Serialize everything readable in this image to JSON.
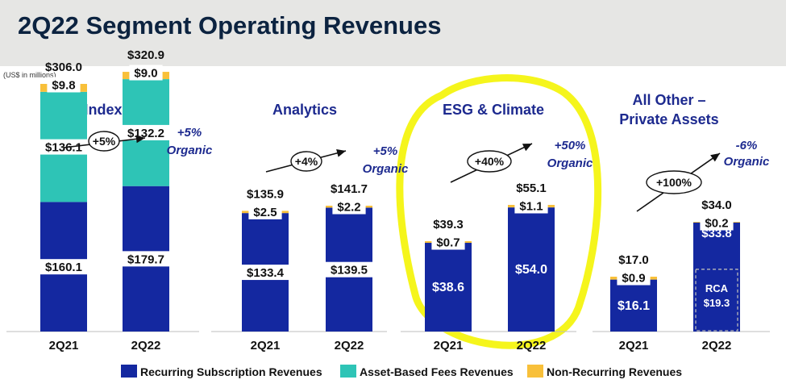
{
  "title": "2Q22 Segment Operating Revenues",
  "units": "(US$ in millions)",
  "colors": {
    "recurring": "#1428a0",
    "asset_based": "#2ec4b6",
    "non_recurring": "#f8c03a",
    "title": "#0c2340",
    "panel_title": "#1d2a8f",
    "highlight": "#f5f51c"
  },
  "chart_data": [
    {
      "type": "bar",
      "stacked": true,
      "title": "Index",
      "categories": [
        "2Q21",
        "2Q22"
      ],
      "totals": [
        "$306.0",
        "$320.9"
      ],
      "series": [
        {
          "name": "Recurring Subscription Revenues",
          "values": [
            160.1,
            179.7
          ],
          "labels": [
            "$160.1",
            "$179.7"
          ]
        },
        {
          "name": "Asset-Based Fees Revenues",
          "values": [
            136.1,
            132.2
          ],
          "labels": [
            "$136.1",
            "$132.2"
          ]
        },
        {
          "name": "Non-Recurring Revenues",
          "values": [
            9.8,
            9.0
          ],
          "labels": [
            "$9.8",
            "$9.0"
          ]
        }
      ],
      "growth": "+5%",
      "organic": [
        "+5%",
        "Organic"
      ]
    },
    {
      "type": "bar",
      "stacked": true,
      "title": "Analytics",
      "categories": [
        "2Q21",
        "2Q22"
      ],
      "totals": [
        "$135.9",
        "$141.7"
      ],
      "series": [
        {
          "name": "Recurring Subscription Revenues",
          "values": [
            133.4,
            139.5
          ],
          "labels": [
            "$133.4",
            "$139.5"
          ]
        },
        {
          "name": "Non-Recurring Revenues",
          "values": [
            2.5,
            2.2
          ],
          "labels": [
            "$2.5",
            "$2.2"
          ]
        }
      ],
      "growth": "+4%",
      "organic": [
        "+5%",
        "Organic"
      ]
    },
    {
      "type": "bar",
      "stacked": true,
      "title": "ESG & Climate",
      "categories": [
        "2Q21",
        "2Q22"
      ],
      "totals": [
        "$39.3",
        "$55.1"
      ],
      "series": [
        {
          "name": "Recurring Subscription Revenues",
          "values": [
            38.6,
            54.0
          ],
          "labels": [
            "$38.6",
            "$54.0"
          ]
        },
        {
          "name": "Non-Recurring Revenues",
          "values": [
            0.7,
            1.1
          ],
          "labels": [
            "$0.7",
            "$1.1"
          ]
        }
      ],
      "growth": "+40%",
      "organic": [
        "+50%",
        "Organic"
      ]
    },
    {
      "type": "bar",
      "stacked": true,
      "title": [
        "All Other –",
        "Private Assets"
      ],
      "categories": [
        "2Q21",
        "2Q22"
      ],
      "totals": [
        "$17.0",
        "$34.0"
      ],
      "series": [
        {
          "name": "Recurring Subscription Revenues",
          "values": [
            16.1,
            33.8
          ],
          "labels": [
            "$16.1",
            "$33.8"
          ]
        },
        {
          "name": "Non-Recurring Revenues",
          "values": [
            0.9,
            0.2
          ],
          "labels": [
            "$0.9",
            "$0.2"
          ]
        }
      ],
      "inset": {
        "label": [
          "RCA",
          "$19.3"
        ],
        "value": 19.3
      },
      "growth": "+100%",
      "organic": [
        "-6%",
        "Organic"
      ]
    }
  ],
  "legend": [
    {
      "label": "Recurring Subscription Revenues",
      "key": "recurring"
    },
    {
      "label": "Asset-Based Fees Revenues",
      "key": "asset_based"
    },
    {
      "label": "Non-Recurring Revenues",
      "key": "non_recurring"
    }
  ]
}
